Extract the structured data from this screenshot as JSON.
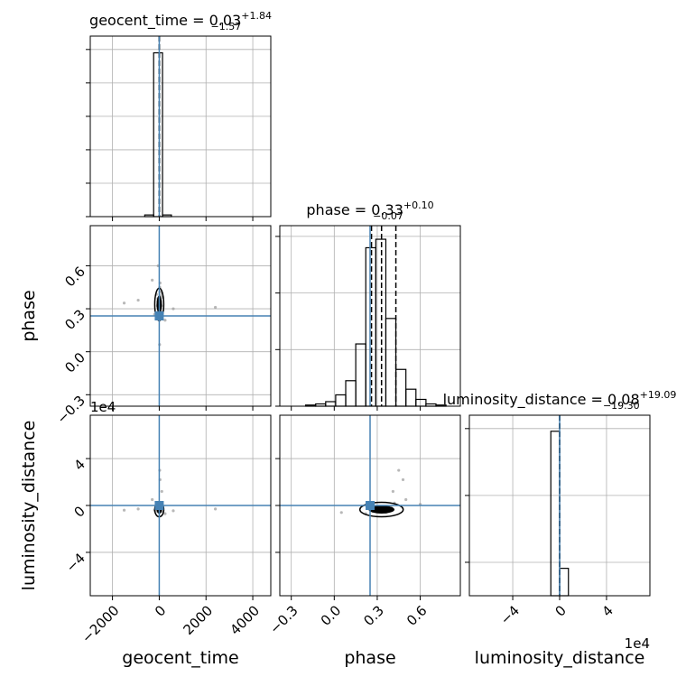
{
  "chart_data": {
    "type": "corner",
    "parameters": [
      {
        "label": "geocent_time",
        "title": {
          "text": "geocent_time = 0.03",
          "plus": "+1.84",
          "minus": "−1.57"
        },
        "lim": [
          -2950,
          4770
        ],
        "ticks": [
          {
            "value": -2000,
            "label": "−2000"
          },
          0,
          2000,
          4000
        ],
        "quantiles": [
          -1.54,
          0.03,
          1.87
        ],
        "truth": 0,
        "hist": {
          "bins": [
            -620,
            -240,
            140,
            520
          ],
          "counts": [
            0.01,
            0.98,
            0.01
          ],
          "ylim": [
            0,
            1.08
          ],
          "yticks": [
            0,
            0.2,
            0.4,
            0.6,
            0.8,
            1.0
          ]
        }
      },
      {
        "label": "phase",
        "title": {
          "text": "phase = 0.33",
          "plus": "+0.10",
          "minus": "−0.07"
        },
        "lim": [
          -0.38,
          0.88
        ],
        "ticks": [
          {
            "value": -0.3,
            "label": "−0.3"
          },
          {
            "value": 0,
            "label": "0.0"
          },
          0.3,
          0.6
        ],
        "quantiles": [
          0.26,
          0.33,
          0.43
        ],
        "truth": 0.25,
        "hist": {
          "bins": [
            -0.2,
            -0.13,
            -0.06,
            0.01,
            0.08,
            0.15,
            0.22,
            0.29,
            0.36,
            0.43,
            0.5,
            0.57,
            0.64,
            0.71,
            0.78
          ],
          "counts": [
            0.02,
            0.04,
            0.08,
            0.2,
            0.45,
            1.1,
            2.8,
            2.95,
            1.55,
            0.65,
            0.3,
            0.12,
            0.04,
            0.02
          ],
          "ylim": [
            0,
            3.19
          ],
          "yticks": [
            0,
            1,
            2,
            3
          ]
        }
      },
      {
        "label": "luminosity_distance",
        "title": {
          "text": "luminosity_distance = 0.08",
          "plus": "+19.09",
          "minus": "−19.30"
        },
        "offset_label": "1e4",
        "lim": [
          -7.7,
          7.7
        ],
        "ticks": [
          {
            "value": -4,
            "label": "−4"
          },
          0,
          4
        ],
        "quantiles": [
          -0.0019,
          0.0,
          0.0019
        ],
        "truth": 0,
        "hist": {
          "bins": [
            -0.75,
            0,
            0.75
          ],
          "counts": [
            2.46,
            0.41
          ],
          "ylim": [
            0,
            2.7
          ],
          "yticks": [
            0.5,
            1.5,
            2.5
          ]
        }
      }
    ],
    "samples": [
      [
        12,
        -40,
        85,
        -120,
        30,
        5,
        -15,
        60,
        -200,
        150,
        -80,
        20,
        -10,
        40,
        -300,
        250,
        -60,
        0,
        110,
        -25,
        70,
        -900,
        600,
        -1500,
        2400,
        -45,
        15,
        35,
        -5,
        90
      ],
      [
        0.31,
        0.35,
        0.28,
        0.4,
        0.33,
        0.3,
        0.36,
        0.42,
        0.26,
        0.38,
        0.32,
        0.45,
        0.29,
        0.34,
        0.5,
        0.22,
        0.37,
        0.33,
        0.41,
        0.27,
        0.39,
        0.36,
        0.3,
        0.34,
        0.31,
        0.6,
        0.05,
        0.48,
        0.35,
        0.32
      ],
      [
        -0.4,
        -0.3,
        -0.5,
        -0.2,
        -0.45,
        -0.35,
        -0.6,
        0.2,
        -0.4,
        -0.1,
        -0.5,
        3.0,
        -0.3,
        -0.2,
        0.5,
        -0.7,
        -0.4,
        -0.35,
        1.2,
        -0.5,
        -0.25,
        -0.3,
        -0.45,
        -0.4,
        -0.3,
        0.1,
        -0.6,
        2.2,
        -0.35,
        -0.5
      ]
    ],
    "grid": true,
    "hist_color": "#000000",
    "sample_color": "#9a9a9a",
    "truth_color": "#4682b4"
  }
}
